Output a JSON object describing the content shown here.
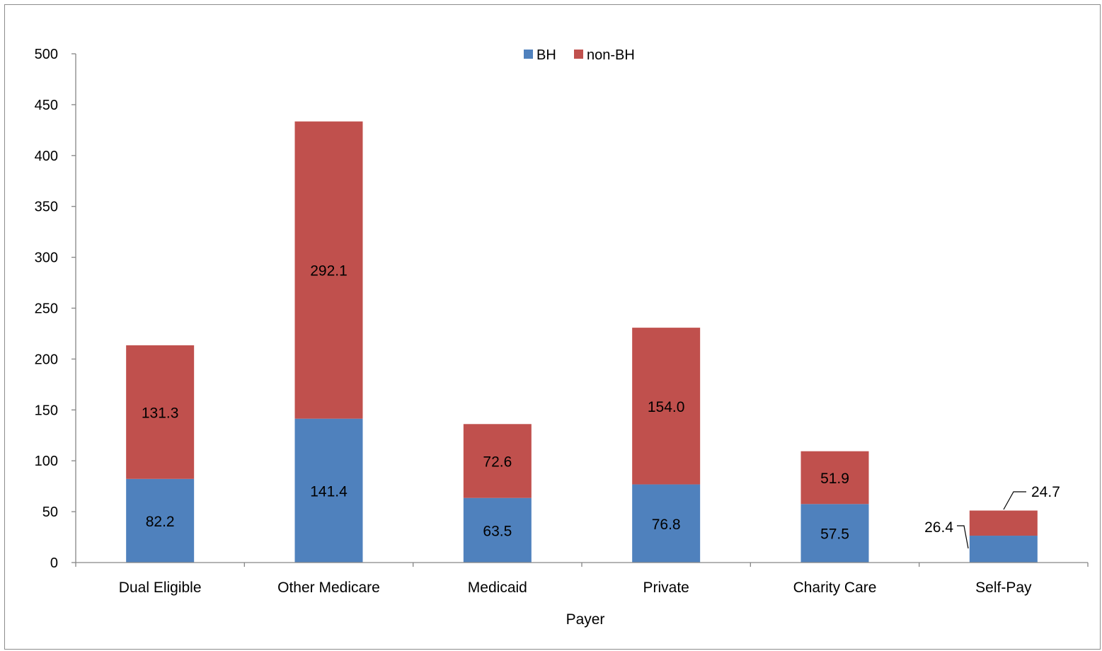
{
  "chart_data": {
    "type": "bar",
    "stacked": true,
    "categories": [
      "Dual Eligible",
      "Other Medicare",
      "Medicaid",
      "Private",
      "Charity Care",
      "Self-Pay"
    ],
    "series": [
      {
        "name": "BH",
        "values": [
          82.2,
          141.4,
          63.5,
          76.8,
          57.5,
          26.4
        ],
        "color": "#4F81BD",
        "labels": [
          "82.2",
          "141.4",
          "63.5",
          "76.8",
          "57.5",
          "26.4"
        ]
      },
      {
        "name": "non-BH",
        "values": [
          131.3,
          292.1,
          72.6,
          154.0,
          51.9,
          24.7
        ],
        "color": "#C0504D",
        "labels": [
          "131.3",
          "292.1",
          "72.6",
          "154.0",
          "51.9",
          "24.7"
        ]
      }
    ],
    "xlabel": "Payer",
    "ylabel": "",
    "ylim": [
      0,
      500
    ],
    "yticks": [
      0,
      50,
      100,
      150,
      200,
      250,
      300,
      350,
      400,
      450,
      500
    ],
    "grid": false,
    "legend": "top-center"
  }
}
